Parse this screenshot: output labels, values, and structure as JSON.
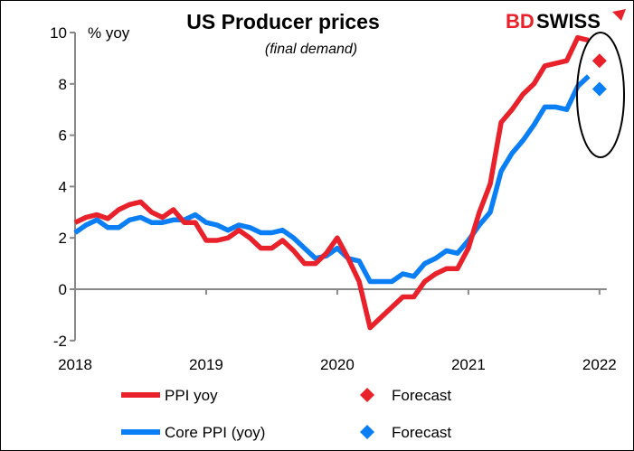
{
  "logo": {
    "text_red": "BD",
    "text_black": "SWISS",
    "brand_red": "#e8212b"
  },
  "chart_data": {
    "type": "line",
    "title": "US Producer prices",
    "subtitle": "(final demand)",
    "ylabel": "% yoy",
    "xlabel": "",
    "ylim": [
      -2,
      10
    ],
    "yticks": [
      "-2",
      "0",
      "2",
      "4",
      "6",
      "8",
      "10"
    ],
    "xticks": [
      "2018",
      "2019",
      "2020",
      "2021",
      "2022"
    ],
    "xlim": [
      "2018-01",
      "2022-01"
    ],
    "grid": false,
    "legend_position": "bottom",
    "x": [
      "2018-01",
      "2018-02",
      "2018-03",
      "2018-04",
      "2018-05",
      "2018-06",
      "2018-07",
      "2018-08",
      "2018-09",
      "2018-10",
      "2018-11",
      "2018-12",
      "2019-01",
      "2019-02",
      "2019-03",
      "2019-04",
      "2019-05",
      "2019-06",
      "2019-07",
      "2019-08",
      "2019-09",
      "2019-10",
      "2019-11",
      "2019-12",
      "2020-01",
      "2020-02",
      "2020-03",
      "2020-04",
      "2020-05",
      "2020-06",
      "2020-07",
      "2020-08",
      "2020-09",
      "2020-10",
      "2020-11",
      "2020-12",
      "2021-01",
      "2021-02",
      "2021-03",
      "2021-04",
      "2021-05",
      "2021-06",
      "2021-07",
      "2021-08",
      "2021-09",
      "2021-10",
      "2021-11",
      "2021-12"
    ],
    "series": [
      {
        "name": "PPI yoy",
        "color": "#e8212b",
        "values": [
          2.6,
          2.8,
          2.9,
          2.75,
          3.1,
          3.3,
          3.4,
          3.0,
          2.8,
          3.1,
          2.6,
          2.6,
          1.9,
          1.9,
          2.0,
          2.3,
          2.0,
          1.6,
          1.6,
          1.9,
          1.5,
          1.0,
          1.0,
          1.4,
          2.0,
          1.2,
          0.3,
          -1.5,
          -1.1,
          -0.7,
          -0.3,
          -0.3,
          0.3,
          0.6,
          0.8,
          0.8,
          1.6,
          3.0,
          4.1,
          6.5,
          7.0,
          7.6,
          8.0,
          8.7,
          8.8,
          8.9,
          9.8,
          9.7
        ]
      },
      {
        "name": "Core PPI (yoy)",
        "color": "#0a7ef5",
        "values": [
          2.2,
          2.5,
          2.7,
          2.4,
          2.4,
          2.7,
          2.8,
          2.6,
          2.6,
          2.7,
          2.7,
          2.9,
          2.6,
          2.5,
          2.3,
          2.5,
          2.4,
          2.2,
          2.2,
          2.3,
          2.0,
          1.6,
          1.2,
          1.3,
          1.6,
          1.2,
          1.1,
          0.3,
          0.3,
          0.3,
          0.6,
          0.5,
          1.0,
          1.2,
          1.5,
          1.4,
          1.9,
          2.5,
          3.0,
          4.6,
          5.3,
          5.8,
          6.4,
          7.1,
          7.1,
          7.0,
          7.9,
          8.3
        ]
      }
    ],
    "forecasts": [
      {
        "name": "Forecast",
        "x": "2022-01",
        "value": 8.9,
        "color": "#e8212b",
        "marker": "diamond"
      },
      {
        "name": "Forecast",
        "x": "2022-01",
        "value": 7.8,
        "color": "#0a7ef5",
        "marker": "diamond"
      }
    ],
    "annotation": "ellipse around forecasts"
  }
}
